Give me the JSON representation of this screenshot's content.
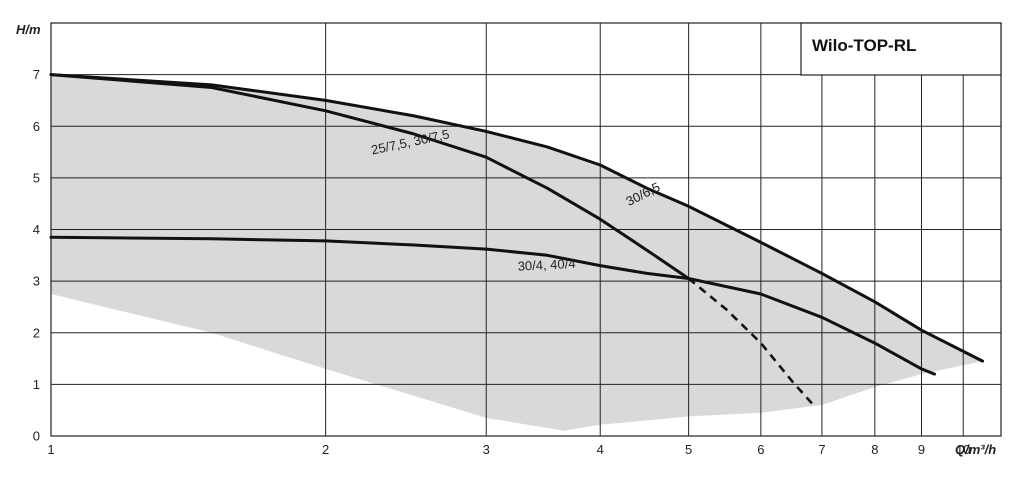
{
  "chart_data": {
    "type": "line",
    "title": "Wilo-TOP-RL",
    "xlabel": "Q/m³/h",
    "ylabel": "H/m",
    "x_scale": "log",
    "xlim": [
      1,
      11
    ],
    "ylim": [
      0,
      8
    ],
    "x_ticks": [
      1,
      2,
      3,
      4,
      5,
      6,
      7,
      8,
      9,
      10
    ],
    "x_tick_labels": [
      "1",
      "2",
      "3",
      "4",
      "5",
      "6",
      "7",
      "8",
      "9",
      "10"
    ],
    "y_ticks": [
      0,
      1,
      2,
      3,
      4,
      5,
      6,
      7
    ],
    "y_tick_labels": [
      "0",
      "1",
      "2",
      "3",
      "4",
      "5",
      "6",
      "7"
    ],
    "grid": true,
    "colors": {
      "curve": "#111111",
      "region": "#d9d9d9",
      "grid": "#222222"
    },
    "region": {
      "upper": [
        [
          1,
          7.0
        ],
        [
          1.5,
          6.8
        ],
        [
          2,
          6.5
        ],
        [
          2.5,
          6.2
        ],
        [
          3,
          5.9
        ],
        [
          3.5,
          5.6
        ],
        [
          4,
          5.25
        ],
        [
          4.5,
          4.8
        ],
        [
          5,
          4.45
        ],
        [
          6,
          3.75
        ],
        [
          7,
          3.15
        ],
        [
          8,
          2.6
        ],
        [
          9,
          2.05
        ],
        [
          10.5,
          1.45
        ]
      ],
      "lower": [
        [
          10.5,
          1.45
        ],
        [
          9,
          1.2
        ],
        [
          8,
          0.95
        ],
        [
          7,
          0.6
        ],
        [
          6.3,
          0.5
        ],
        [
          6,
          0.45
        ],
        [
          5,
          0.38
        ],
        [
          4.5,
          0.3
        ],
        [
          4,
          0.22
        ],
        [
          3.65,
          0.1
        ],
        [
          3,
          0.35
        ],
        [
          2,
          1.3
        ],
        [
          1.5,
          2.0
        ],
        [
          1,
          2.75
        ]
      ]
    },
    "series": [
      {
        "name": "30/6,5",
        "label_at": [
          4.3,
          4.45
        ],
        "label_angle": -27,
        "points": [
          [
            1,
            7.0
          ],
          [
            1.5,
            6.8
          ],
          [
            2,
            6.5
          ],
          [
            2.5,
            6.2
          ],
          [
            3,
            5.9
          ],
          [
            3.5,
            5.6
          ],
          [
            4,
            5.25
          ],
          [
            4.5,
            4.8
          ],
          [
            5,
            4.45
          ],
          [
            6,
            3.75
          ],
          [
            7,
            3.15
          ],
          [
            8,
            2.6
          ],
          [
            9,
            2.05
          ],
          [
            10.5,
            1.45
          ]
        ]
      },
      {
        "name": "25/7,5, 30/7,5",
        "label_at": [
          2.25,
          5.45
        ],
        "label_angle": -12,
        "points": [
          [
            1,
            7.0
          ],
          [
            1.5,
            6.75
          ],
          [
            2,
            6.3
          ],
          [
            2.5,
            5.85
          ],
          [
            3,
            5.4
          ],
          [
            3.5,
            4.8
          ],
          [
            4,
            4.2
          ],
          [
            4.5,
            3.6
          ],
          [
            5,
            3.05
          ]
        ],
        "dashed_points": [
          [
            5,
            3.05
          ],
          [
            5.5,
            2.45
          ],
          [
            6,
            1.8
          ],
          [
            6.5,
            1.05
          ],
          [
            6.85,
            0.6
          ]
        ]
      },
      {
        "name": "30/4, 40/4",
        "label_at": [
          3.25,
          3.2
        ],
        "label_angle": -3,
        "points": [
          [
            1,
            3.85
          ],
          [
            1.5,
            3.82
          ],
          [
            2,
            3.78
          ],
          [
            2.5,
            3.7
          ],
          [
            3,
            3.62
          ],
          [
            3.5,
            3.5
          ],
          [
            4,
            3.3
          ],
          [
            4.5,
            3.15
          ],
          [
            5,
            3.05
          ],
          [
            6,
            2.75
          ],
          [
            7,
            2.3
          ],
          [
            8,
            1.8
          ],
          [
            9,
            1.3
          ],
          [
            9.3,
            1.2
          ]
        ]
      }
    ]
  }
}
